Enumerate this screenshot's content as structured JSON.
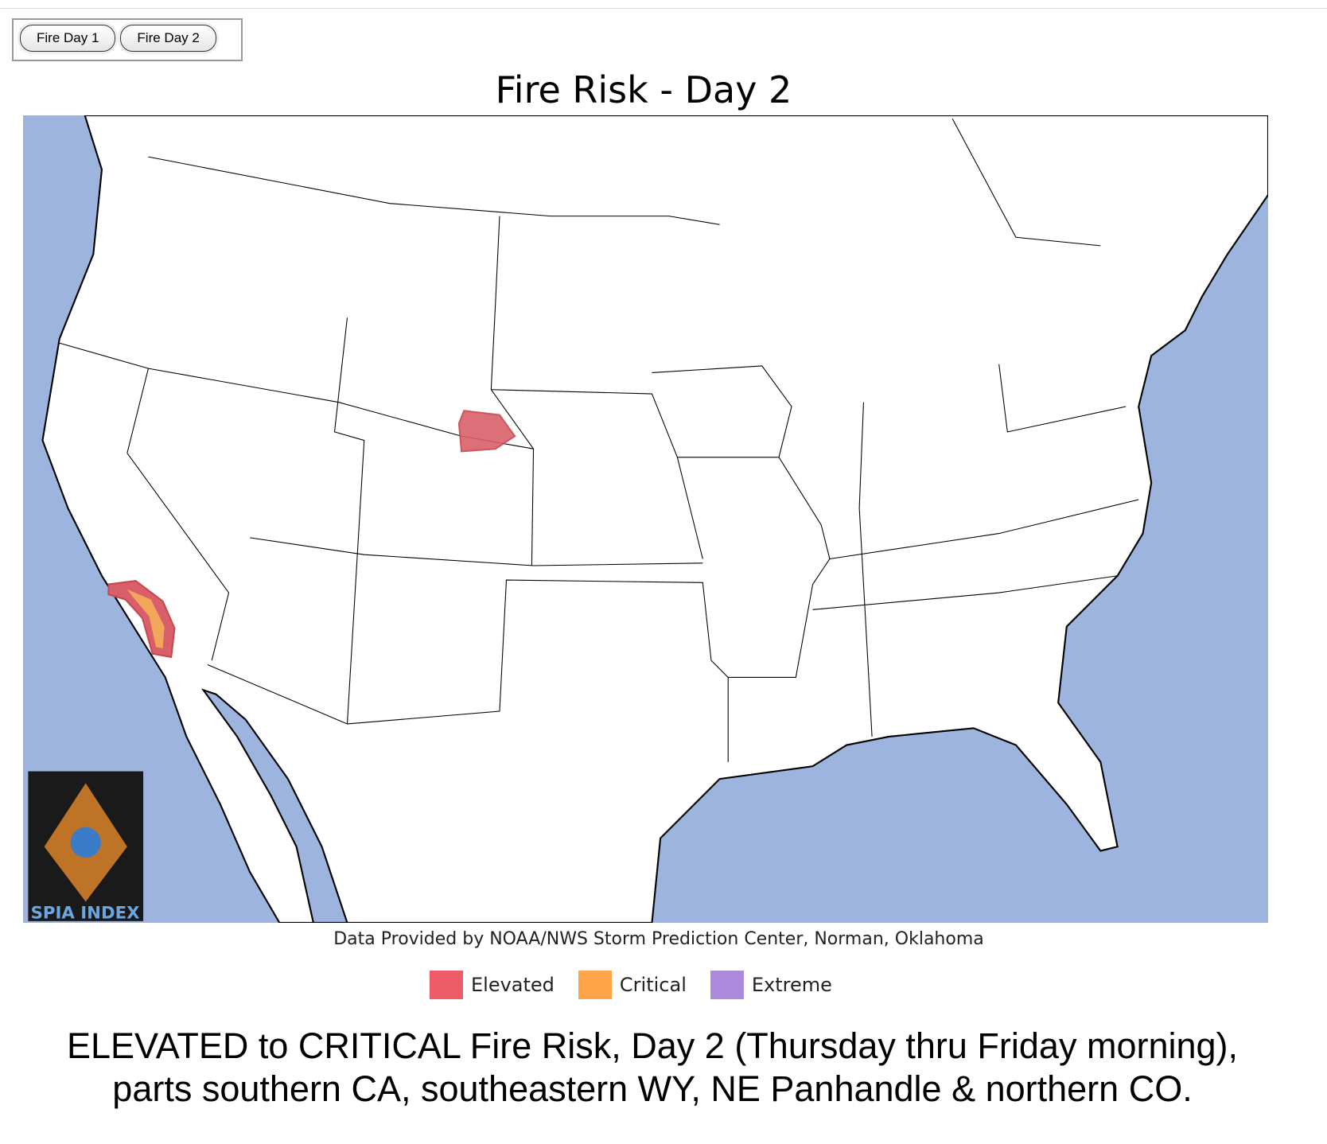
{
  "buttons": [
    "Fire Day 1",
    "Fire Day 2"
  ],
  "map": {
    "title": "Fire Risk - Day 2",
    "logo": "SPIA INDEX",
    "credit": "Data Provided by NOAA/NWS Storm Prediction Center, Norman, Oklahoma"
  },
  "legend": [
    {
      "label": "Elevated",
      "color": "#d9606a"
    },
    {
      "label": "Critical",
      "color": "#f2a65a"
    },
    {
      "label": "Extreme",
      "color": "#a98bd0"
    }
  ],
  "caption": [
    "ELEVATED to CRITICAL Fire Risk, Day 2 (Thursday thru Friday morning),",
    "parts southern CA, southeastern WY, NE Panhandle & northern CO."
  ]
}
